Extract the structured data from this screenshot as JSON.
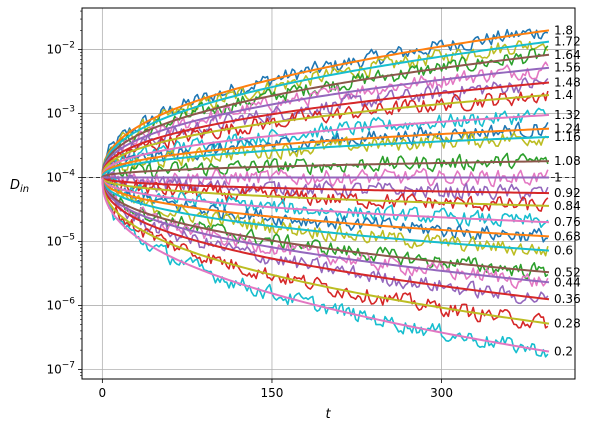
{
  "chart_data": {
    "type": "line",
    "title": "",
    "xlabel": "t",
    "ylabel": "D",
    "ylabel_sub": "in",
    "xlim": [
      -18,
      418
    ],
    "ylim_log10": [
      -7.15,
      -1.35
    ],
    "yscale": "log",
    "grid": true,
    "x_ticks": [
      0,
      150,
      300
    ],
    "x_tick_labels": [
      "0",
      "150",
      "300"
    ],
    "y_ticks_log10": [
      -7,
      -6,
      -5,
      -4,
      -3,
      -2
    ],
    "y_tick_bases": [
      "10",
      "10",
      "10",
      "10",
      "10",
      "10"
    ],
    "y_tick_exponents": [
      "−7",
      "−6",
      "−5",
      "−4",
      "−3",
      "−2"
    ],
    "reference_line": {
      "y": 0.0001,
      "style": "dashed",
      "color": "#333333"
    },
    "t_end": 395,
    "noise_series_colors": [
      "#1f77b4",
      "#bcbd22",
      "#2ca02c",
      "#e377c2",
      "#9467bd",
      "#d62728",
      "#17becf"
    ],
    "fit_series_colors": [
      "#ff7f0e",
      "#17becf",
      "#8c564b",
      "#9467bd",
      "#d62728",
      "#bcbd22",
      "#e377c2"
    ],
    "series": [
      {
        "label": "1.8",
        "end_value": 0.02
      },
      {
        "label": "1.72",
        "end_value": 0.0133
      },
      {
        "label": "1.64",
        "end_value": 0.0083
      },
      {
        "label": "1.56",
        "end_value": 0.0052
      },
      {
        "label": "1.48",
        "end_value": 0.00305
      },
      {
        "label": "1.4",
        "end_value": 0.00195
      },
      {
        "label": "1.32",
        "end_value": 0.00095
      },
      {
        "label": "1.24",
        "end_value": 0.00058
      },
      {
        "label": "1.16",
        "end_value": 0.00043
      },
      {
        "label": "1.08",
        "end_value": 0.00018
      },
      {
        "label": "1",
        "end_value": 0.0001
      },
      {
        "label": "0.92",
        "end_value": 5.7e-05
      },
      {
        "label": "0.84",
        "end_value": 3.6e-05
      },
      {
        "label": "0.76",
        "end_value": 2e-05
      },
      {
        "label": "0.68",
        "end_value": 1.2e-05
      },
      {
        "label": "0.6",
        "end_value": 7.2e-06
      },
      {
        "label": "0.52",
        "end_value": 3.3e-06
      },
      {
        "label": "0.44",
        "end_value": 2.3e-06
      },
      {
        "label": "0.36",
        "end_value": 1.25e-06
      },
      {
        "label": "0.28",
        "end_value": 5.2e-07
      },
      {
        "label": "0.2",
        "end_value": 1.9e-07
      }
    ]
  }
}
